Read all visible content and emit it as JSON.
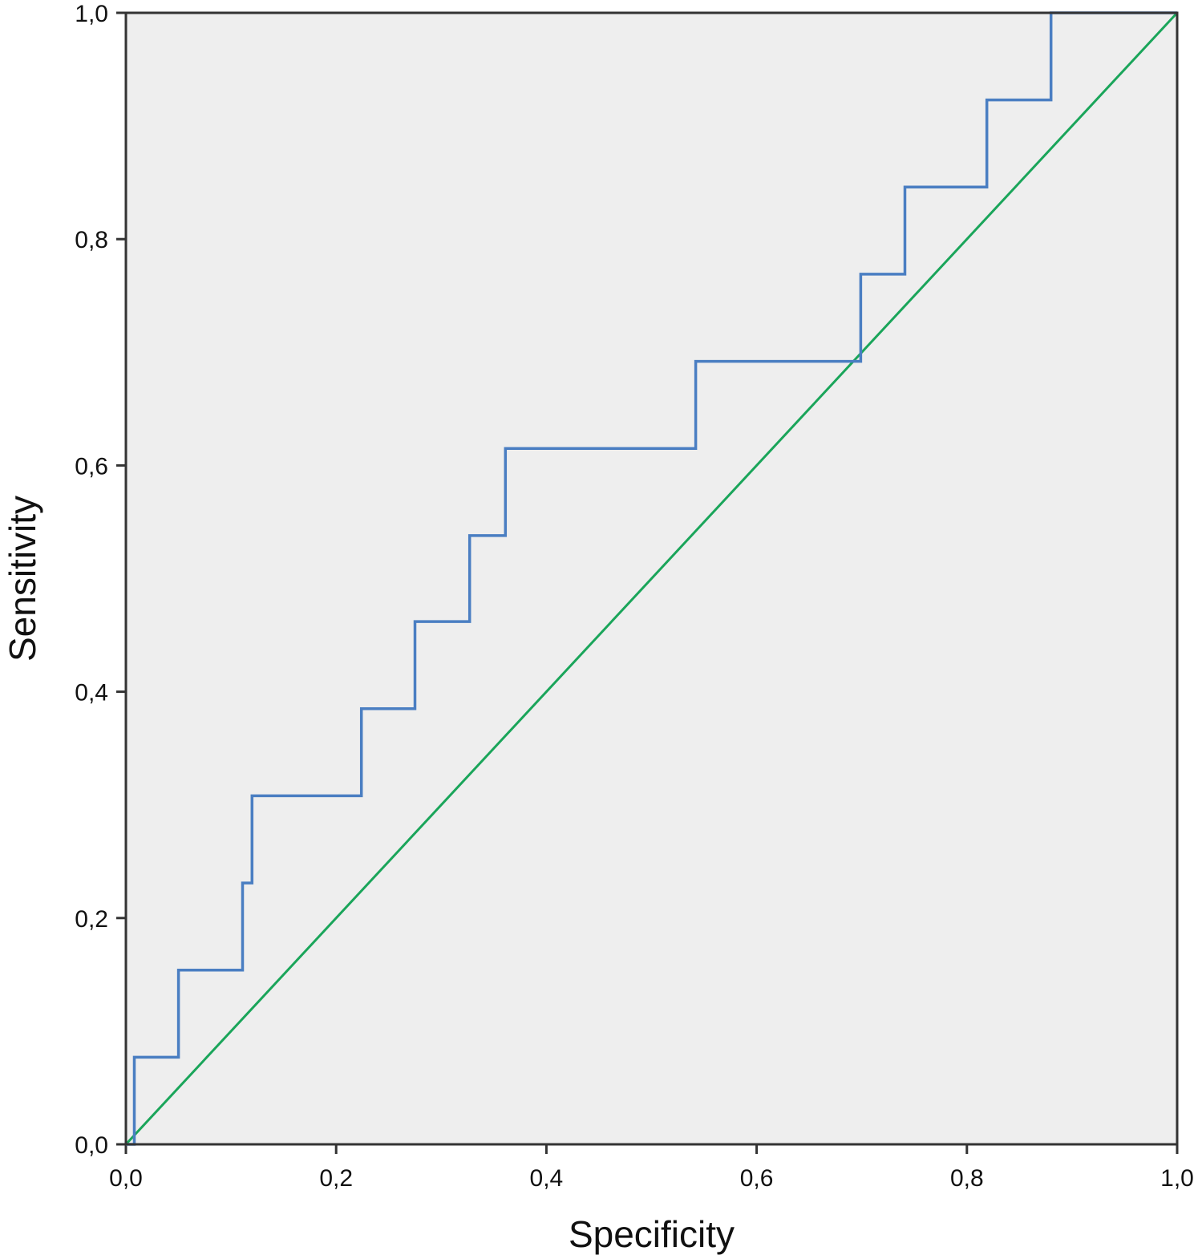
{
  "chart_data": {
    "type": "line",
    "title": "",
    "xlabel": "Specificity",
    "ylabel": "Sensitivity",
    "xlim": [
      0,
      1
    ],
    "ylim": [
      0,
      1
    ],
    "grid": false,
    "legend": "none",
    "x_ticks": [
      "0,0",
      "0,2",
      "0,4",
      "0,6",
      "0,8",
      "1,0"
    ],
    "y_ticks": [
      "0,0",
      "0,2",
      "0,4",
      "0,6",
      "0,8",
      "1,0"
    ],
    "x_tick_values": [
      0,
      0.2,
      0.4,
      0.6,
      0.8,
      1.0
    ],
    "y_tick_values": [
      0,
      0.2,
      0.4,
      0.6,
      0.8,
      1.0
    ],
    "colors": {
      "plot_background": "#eeeeee",
      "roc_curve": "#4a7ec2",
      "reference_line": "#1aa55a",
      "frame": "#333333"
    },
    "series": [
      {
        "role": "roc-curve",
        "style": "step",
        "x": [
          0.0,
          0.008,
          0.008,
          0.05,
          0.05,
          0.111,
          0.111,
          0.12,
          0.12,
          0.224,
          0.224,
          0.275,
          0.275,
          0.327,
          0.327,
          0.361,
          0.361,
          0.542,
          0.542,
          0.699,
          0.699,
          0.741,
          0.741,
          0.819,
          0.819,
          0.88,
          0.88,
          1.0
        ],
        "y": [
          0.0,
          0.0,
          0.077,
          0.077,
          0.154,
          0.154,
          0.231,
          0.231,
          0.308,
          0.308,
          0.385,
          0.385,
          0.462,
          0.462,
          0.538,
          0.538,
          0.615,
          0.615,
          0.692,
          0.692,
          0.769,
          0.769,
          0.846,
          0.846,
          0.923,
          0.923,
          1.0,
          1.0
        ]
      },
      {
        "role": "reference-line",
        "style": "line",
        "x": [
          0,
          1
        ],
        "y": [
          0,
          1
        ]
      }
    ]
  }
}
